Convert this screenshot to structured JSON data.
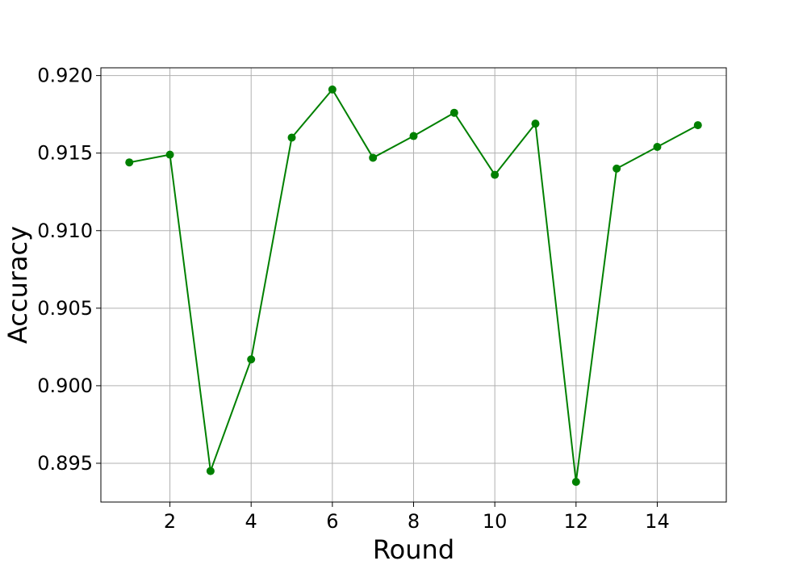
{
  "chart_data": {
    "type": "line",
    "title": "",
    "xlabel": "Round",
    "ylabel": "Accuracy",
    "xlim": [
      0.3,
      15.7
    ],
    "ylim": [
      0.8925,
      0.9205
    ],
    "grid": true,
    "x_ticks": [
      2,
      4,
      6,
      8,
      10,
      12,
      14
    ],
    "x_tick_labels": [
      "2",
      "4",
      "6",
      "8",
      "10",
      "12",
      "14"
    ],
    "y_ticks": [
      0.895,
      0.9,
      0.905,
      0.91,
      0.915,
      0.92
    ],
    "y_tick_labels": [
      "0.895",
      "0.900",
      "0.905",
      "0.910",
      "0.915",
      "0.920"
    ],
    "series": [
      {
        "name": "Accuracy",
        "color": "#008000",
        "marker": "circle",
        "x": [
          1,
          2,
          3,
          4,
          5,
          6,
          7,
          8,
          9,
          10,
          11,
          12,
          13,
          14,
          15
        ],
        "values": [
          0.9144,
          0.9149,
          0.8945,
          0.9017,
          0.916,
          0.9191,
          0.9147,
          0.9161,
          0.9176,
          0.9136,
          0.9169,
          0.8938,
          0.914,
          0.9154,
          0.9168
        ]
      }
    ]
  }
}
